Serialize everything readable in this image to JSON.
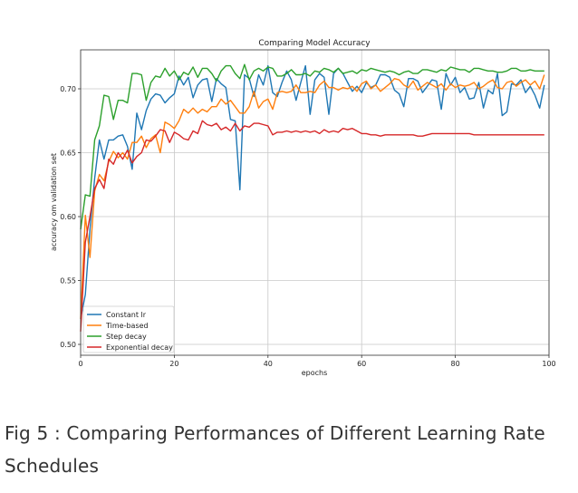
{
  "caption": "Fig 5 : Comparing Performances of Different Learning Rate Schedules",
  "chart_data": {
    "type": "line",
    "title": "Comparing Model Accuracy",
    "xlabel": "epochs",
    "ylabel": "accuracy om validation set",
    "xlim": [
      0,
      100
    ],
    "ylim": [
      0.4915,
      0.7305
    ],
    "xticks": [
      "0",
      "20",
      "40",
      "60",
      "80",
      "100"
    ],
    "yticks": [
      "0.50",
      "0.55",
      "0.60",
      "0.65",
      "0.70"
    ],
    "grid": true,
    "legend_position": "lower-left",
    "x_note": "",
    "series": [
      {
        "name": "Constant lr",
        "color": "#1f77b4",
        "values": [
          0.52,
          0.539,
          0.59,
          0.63,
          0.66,
          0.645,
          0.66,
          0.66,
          0.663,
          0.664,
          0.655,
          0.637,
          0.681,
          0.668,
          0.683,
          0.692,
          0.696,
          0.695,
          0.689,
          0.693,
          0.696,
          0.71,
          0.703,
          0.709,
          0.693,
          0.703,
          0.707,
          0.708,
          0.69,
          0.708,
          0.704,
          0.701,
          0.676,
          0.675,
          0.621,
          0.711,
          0.708,
          0.694,
          0.711,
          0.703,
          0.718,
          0.697,
          0.694,
          0.705,
          0.714,
          0.707,
          0.691,
          0.705,
          0.718,
          0.68,
          0.707,
          0.712,
          0.709,
          0.68,
          0.712,
          0.716,
          0.712,
          0.705,
          0.698,
          0.702,
          0.697,
          0.705,
          0.701,
          0.703,
          0.711,
          0.711,
          0.709,
          0.699,
          0.696,
          0.686,
          0.708,
          0.708,
          0.706,
          0.697,
          0.702,
          0.707,
          0.706,
          0.684,
          0.712,
          0.703,
          0.709,
          0.697,
          0.701,
          0.692,
          0.693,
          0.705,
          0.685,
          0.699,
          0.696,
          0.712,
          0.679,
          0.682,
          0.704,
          0.703,
          0.707,
          0.697,
          0.702,
          0.695,
          0.685,
          0.703
        ]
      },
      {
        "name": "Time-based",
        "color": "#ff7f0e",
        "values": [
          0.52,
          0.601,
          0.568,
          0.62,
          0.633,
          0.628,
          0.643,
          0.651,
          0.646,
          0.65,
          0.645,
          0.658,
          0.658,
          0.663,
          0.654,
          0.661,
          0.664,
          0.65,
          0.674,
          0.672,
          0.669,
          0.675,
          0.684,
          0.681,
          0.685,
          0.681,
          0.684,
          0.682,
          0.686,
          0.686,
          0.692,
          0.688,
          0.691,
          0.686,
          0.681,
          0.681,
          0.686,
          0.698,
          0.685,
          0.69,
          0.692,
          0.684,
          0.697,
          0.698,
          0.697,
          0.698,
          0.703,
          0.697,
          0.697,
          0.698,
          0.697,
          0.703,
          0.706,
          0.701,
          0.701,
          0.699,
          0.701,
          0.7,
          0.702,
          0.698,
          0.704,
          0.706,
          0.7,
          0.703,
          0.698,
          0.701,
          0.704,
          0.708,
          0.707,
          0.703,
          0.701,
          0.706,
          0.699,
          0.702,
          0.705,
          0.703,
          0.701,
          0.704,
          0.699,
          0.704,
          0.701,
          0.703,
          0.702,
          0.703,
          0.705,
          0.7,
          0.702,
          0.705,
          0.707,
          0.701,
          0.7,
          0.705,
          0.706,
          0.702,
          0.705,
          0.707,
          0.703,
          0.706,
          0.7,
          0.711
        ]
      },
      {
        "name": "Step decay",
        "color": "#2ca02c",
        "values": [
          0.59,
          0.617,
          0.616,
          0.66,
          0.671,
          0.695,
          0.694,
          0.676,
          0.691,
          0.691,
          0.689,
          0.712,
          0.712,
          0.711,
          0.691,
          0.705,
          0.71,
          0.709,
          0.716,
          0.71,
          0.714,
          0.707,
          0.713,
          0.711,
          0.717,
          0.709,
          0.716,
          0.716,
          0.712,
          0.706,
          0.714,
          0.718,
          0.718,
          0.712,
          0.708,
          0.719,
          0.707,
          0.714,
          0.716,
          0.714,
          0.717,
          0.716,
          0.71,
          0.71,
          0.712,
          0.715,
          0.711,
          0.711,
          0.712,
          0.71,
          0.714,
          0.713,
          0.716,
          0.715,
          0.713,
          0.716,
          0.712,
          0.713,
          0.714,
          0.712,
          0.715,
          0.714,
          0.716,
          0.715,
          0.714,
          0.713,
          0.714,
          0.713,
          0.711,
          0.713,
          0.714,
          0.712,
          0.712,
          0.715,
          0.715,
          0.714,
          0.713,
          0.715,
          0.714,
          0.717,
          0.716,
          0.715,
          0.715,
          0.713,
          0.716,
          0.716,
          0.715,
          0.714,
          0.714,
          0.713,
          0.713,
          0.714,
          0.716,
          0.716,
          0.714,
          0.714,
          0.715,
          0.714,
          0.714,
          0.714
        ]
      },
      {
        "name": "Exponential decay",
        "color": "#d62728",
        "values": [
          0.51,
          0.58,
          0.6,
          0.622,
          0.629,
          0.622,
          0.645,
          0.641,
          0.65,
          0.645,
          0.652,
          0.642,
          0.647,
          0.65,
          0.66,
          0.659,
          0.663,
          0.668,
          0.667,
          0.658,
          0.666,
          0.664,
          0.661,
          0.66,
          0.667,
          0.665,
          0.675,
          0.672,
          0.671,
          0.673,
          0.668,
          0.67,
          0.667,
          0.673,
          0.667,
          0.671,
          0.67,
          0.673,
          0.673,
          0.672,
          0.671,
          0.664,
          0.666,
          0.666,
          0.667,
          0.666,
          0.667,
          0.666,
          0.667,
          0.666,
          0.667,
          0.665,
          0.668,
          0.666,
          0.667,
          0.666,
          0.669,
          0.668,
          0.669,
          0.667,
          0.665,
          0.665,
          0.664,
          0.664,
          0.663,
          0.664,
          0.664,
          0.664,
          0.664,
          0.664,
          0.664,
          0.664,
          0.663,
          0.663,
          0.664,
          0.665,
          0.665,
          0.665,
          0.665,
          0.665,
          0.665,
          0.665,
          0.665,
          0.665,
          0.664,
          0.664,
          0.664,
          0.664,
          0.664,
          0.664,
          0.664,
          0.664,
          0.664,
          0.664,
          0.664,
          0.664,
          0.664,
          0.664,
          0.664,
          0.664
        ]
      }
    ]
  }
}
